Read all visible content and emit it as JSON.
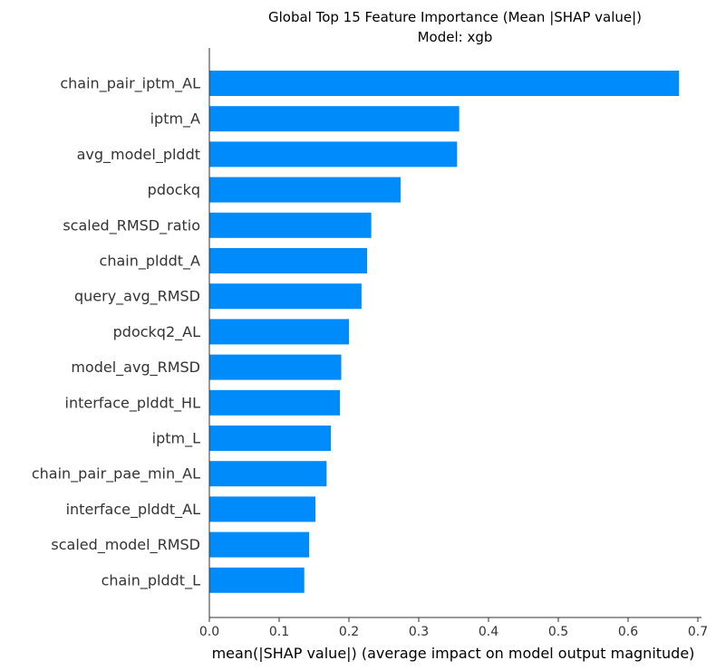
{
  "chart_data": {
    "type": "bar",
    "orientation": "horizontal",
    "title": "Global Top 15 Feature Importance (Mean |SHAP value|)",
    "subtitle": "Model: xgb",
    "xlabel": "mean(|SHAP value|) (average impact on model output magnitude)",
    "ylabel": "",
    "xlim": [
      0,
      0.7
    ],
    "xticks": [
      "0.0",
      "0.1",
      "0.2",
      "0.3",
      "0.4",
      "0.5",
      "0.6",
      "0.7"
    ],
    "grid": false,
    "bar_color": "#008bfb",
    "categories": [
      "chain_pair_iptm_AL",
      "iptm_A",
      "avg_model_plddt",
      "pdockq",
      "scaled_RMSD_ratio",
      "chain_plddt_A",
      "query_avg_RMSD",
      "pdockq2_AL",
      "model_avg_RMSD",
      "interface_plddt_HL",
      "iptm_L",
      "chain_pair_pae_min_AL",
      "interface_plddt_AL",
      "scaled_model_RMSD",
      "chain_plddt_L"
    ],
    "values": [
      0.673,
      0.358,
      0.355,
      0.274,
      0.232,
      0.226,
      0.218,
      0.2,
      0.189,
      0.187,
      0.174,
      0.168,
      0.152,
      0.143,
      0.136
    ]
  }
}
